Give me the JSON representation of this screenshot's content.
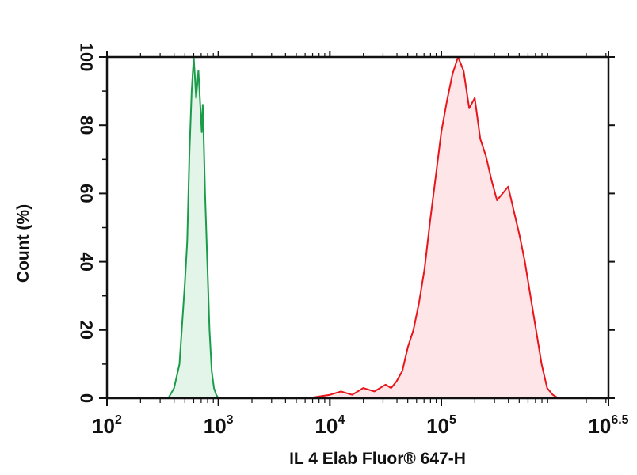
{
  "chart_data": {
    "type": "area",
    "title": "",
    "xlabel": "IL 4 Elab Fluor® 647-H",
    "ylabel": "Count (%)",
    "xscale": "log",
    "xlim": [
      100,
      3162278
    ],
    "ylim": [
      0,
      100
    ],
    "grid": false,
    "x_ticks": [
      {
        "base": "10",
        "exp": "2"
      },
      {
        "base": "10",
        "exp": "3"
      },
      {
        "base": "10",
        "exp": "4"
      },
      {
        "base": "10",
        "exp": "5"
      },
      {
        "base": "10",
        "exp": "6.5"
      }
    ],
    "y_ticks": [
      "0",
      "20",
      "40",
      "60",
      "80",
      "100"
    ],
    "series": [
      {
        "color": "#1a9c4a",
        "fill": "#e3f4e8",
        "x": [
          355,
          400,
          447,
          501,
          525,
          550,
          575,
          600,
          631,
          661,
          692,
          708,
          724,
          741,
          759,
          794,
          832,
          871,
          912,
          955,
          1000,
          1047
        ],
        "y": [
          0,
          3,
          10,
          34,
          46,
          72,
          90,
          100,
          88,
          96,
          84,
          78,
          86,
          73,
          60,
          40,
          20,
          8,
          3,
          1,
          0,
          0
        ]
      },
      {
        "color": "#e8151b",
        "fill": "#fde5e8",
        "x": [
          1585,
          3162,
          6310,
          10000,
          12589,
          15849,
          19953,
          25119,
          31623,
          35481,
          39811,
          44668,
          50119,
          56234,
          63096,
          70795,
          79433,
          89125,
          100000,
          112202,
          125893,
          141254,
          158489,
          177828,
          199526,
          223872,
          251189,
          281838,
          316228,
          354813,
          398107,
          446684,
          501187,
          562341,
          630957,
          707946,
          794328,
          891251,
          1000000,
          1122018,
          1258925
        ],
        "y": [
          0,
          0,
          0,
          1,
          2,
          1,
          3,
          2,
          4,
          3,
          5,
          8,
          15,
          20,
          28,
          38,
          52,
          65,
          78,
          87,
          95,
          100,
          96,
          85,
          88,
          76,
          71,
          64,
          58,
          60,
          62,
          55,
          48,
          40,
          30,
          20,
          10,
          3,
          1,
          0,
          0
        ]
      }
    ]
  }
}
